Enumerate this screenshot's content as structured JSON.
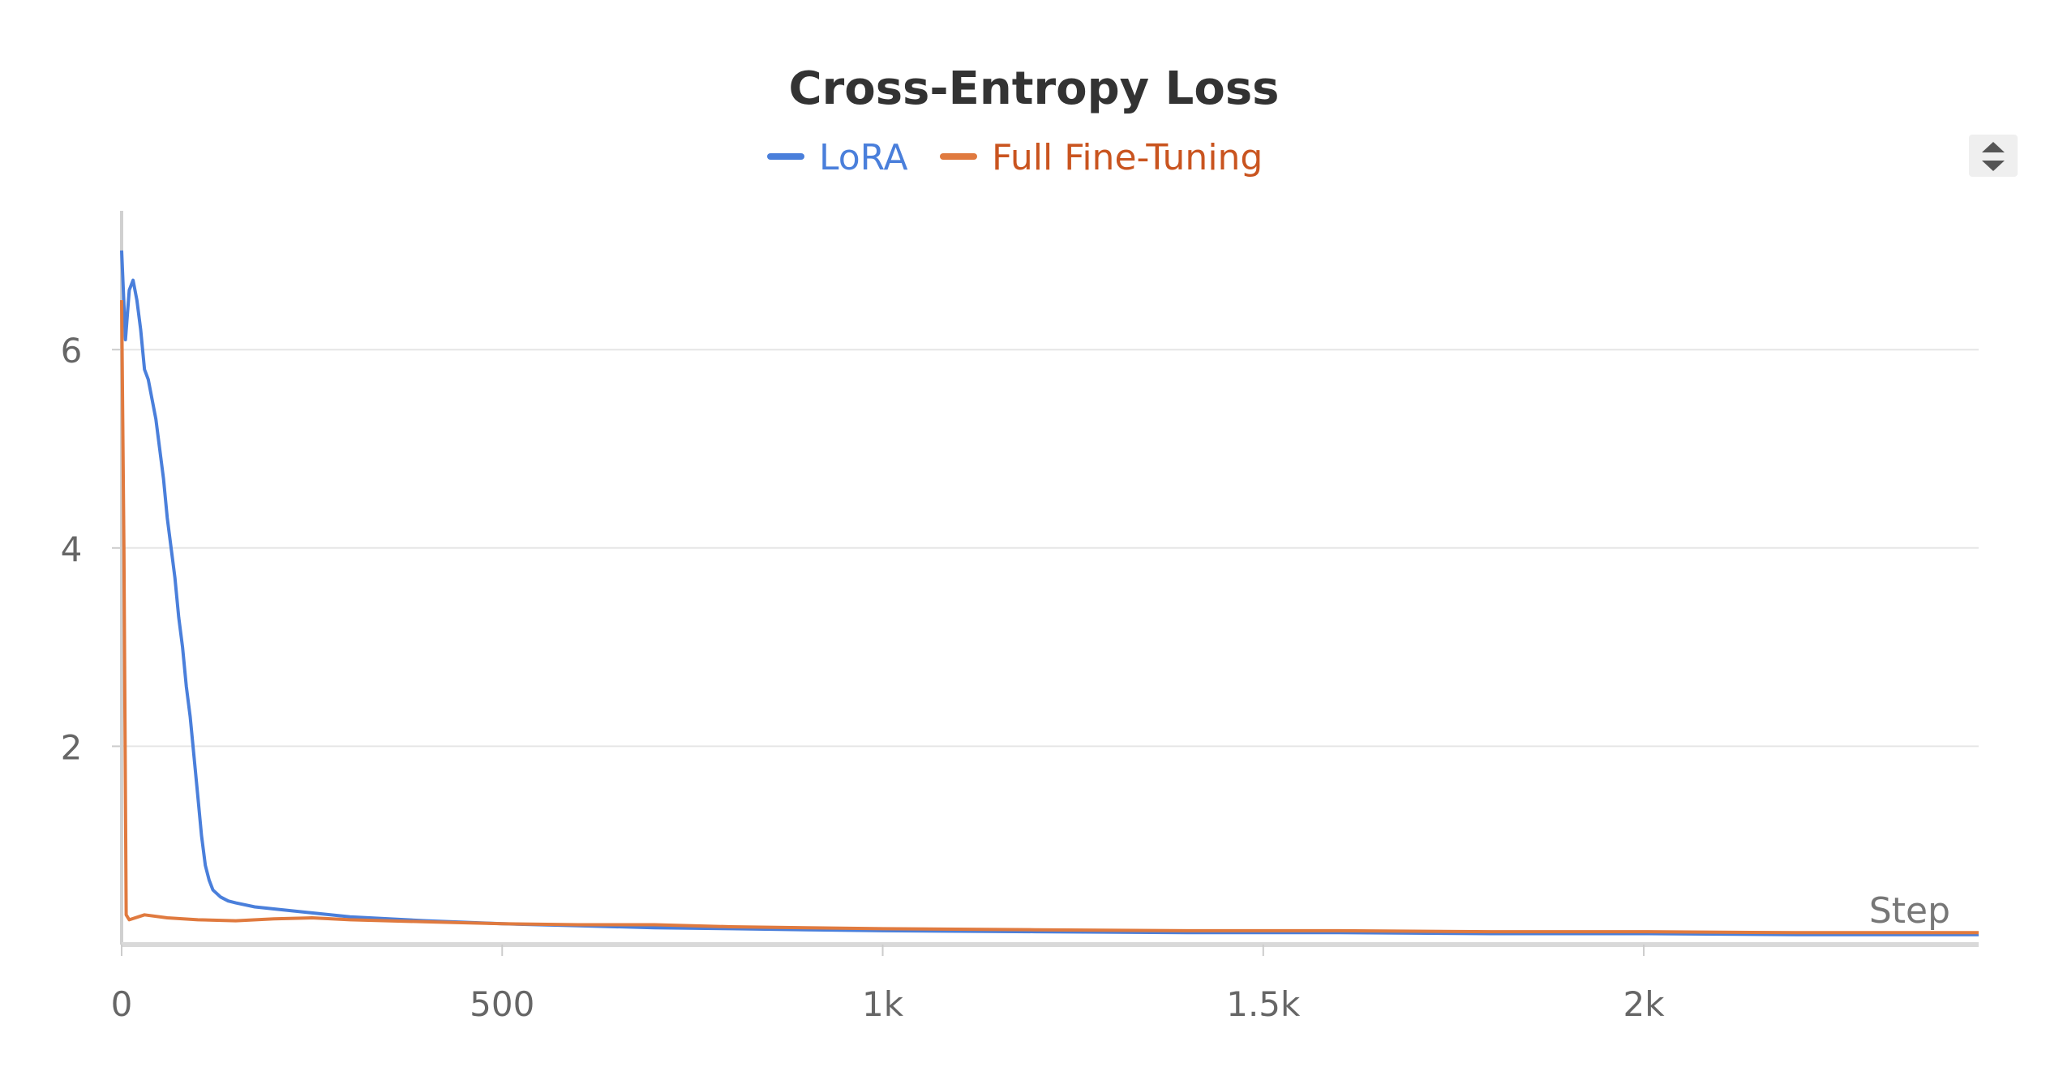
{
  "chart_data": {
    "type": "line",
    "title": "Cross-Entropy Loss",
    "xlabel": "Step",
    "ylabel": "",
    "xlim": [
      0,
      2440
    ],
    "ylim": [
      0,
      7.4
    ],
    "x_ticks": [
      0,
      500,
      1000,
      1500,
      2000
    ],
    "x_tick_labels": [
      "0",
      "500",
      "1k",
      "1.5k",
      "2k"
    ],
    "y_ticks": [
      2,
      4,
      6
    ],
    "y_tick_labels": [
      "2",
      "4",
      "6"
    ],
    "grid": true,
    "legend_position": "top-center",
    "series": [
      {
        "name": "LoRA",
        "color": "#4a7fdb",
        "points": [
          [
            0,
            7.0
          ],
          [
            5,
            6.1
          ],
          [
            10,
            6.6
          ],
          [
            15,
            6.7
          ],
          [
            20,
            6.5
          ],
          [
            25,
            6.2
          ],
          [
            30,
            5.8
          ],
          [
            35,
            5.7
          ],
          [
            40,
            5.5
          ],
          [
            45,
            5.3
          ],
          [
            50,
            5.0
          ],
          [
            55,
            4.7
          ],
          [
            60,
            4.3
          ],
          [
            65,
            4.0
          ],
          [
            70,
            3.7
          ],
          [
            75,
            3.3
          ],
          [
            80,
            3.0
          ],
          [
            85,
            2.6
          ],
          [
            90,
            2.3
          ],
          [
            95,
            1.9
          ],
          [
            100,
            1.5
          ],
          [
            105,
            1.1
          ],
          [
            110,
            0.8
          ],
          [
            115,
            0.65
          ],
          [
            120,
            0.55
          ],
          [
            130,
            0.48
          ],
          [
            140,
            0.44
          ],
          [
            150,
            0.42
          ],
          [
            175,
            0.38
          ],
          [
            200,
            0.36
          ],
          [
            250,
            0.32
          ],
          [
            300,
            0.28
          ],
          [
            400,
            0.24
          ],
          [
            500,
            0.21
          ],
          [
            600,
            0.19
          ],
          [
            700,
            0.17
          ],
          [
            800,
            0.16
          ],
          [
            900,
            0.15
          ],
          [
            1000,
            0.14
          ],
          [
            1200,
            0.13
          ],
          [
            1400,
            0.12
          ],
          [
            1600,
            0.12
          ],
          [
            1800,
            0.11
          ],
          [
            2000,
            0.11
          ],
          [
            2200,
            0.1
          ],
          [
            2440,
            0.1
          ]
        ]
      },
      {
        "name": "Full Fine-Tuning",
        "color": "#e07a3f",
        "points": [
          [
            0,
            6.5
          ],
          [
            3,
            4.0
          ],
          [
            6,
            0.3
          ],
          [
            10,
            0.25
          ],
          [
            30,
            0.3
          ],
          [
            60,
            0.27
          ],
          [
            100,
            0.25
          ],
          [
            150,
            0.24
          ],
          [
            200,
            0.26
          ],
          [
            250,
            0.27
          ],
          [
            300,
            0.25
          ],
          [
            400,
            0.23
          ],
          [
            500,
            0.21
          ],
          [
            600,
            0.2
          ],
          [
            700,
            0.2
          ],
          [
            800,
            0.18
          ],
          [
            900,
            0.17
          ],
          [
            1000,
            0.16
          ],
          [
            1200,
            0.15
          ],
          [
            1400,
            0.14
          ],
          [
            1600,
            0.14
          ],
          [
            1800,
            0.13
          ],
          [
            2000,
            0.13
          ],
          [
            2200,
            0.12
          ],
          [
            2440,
            0.12
          ]
        ]
      }
    ]
  }
}
